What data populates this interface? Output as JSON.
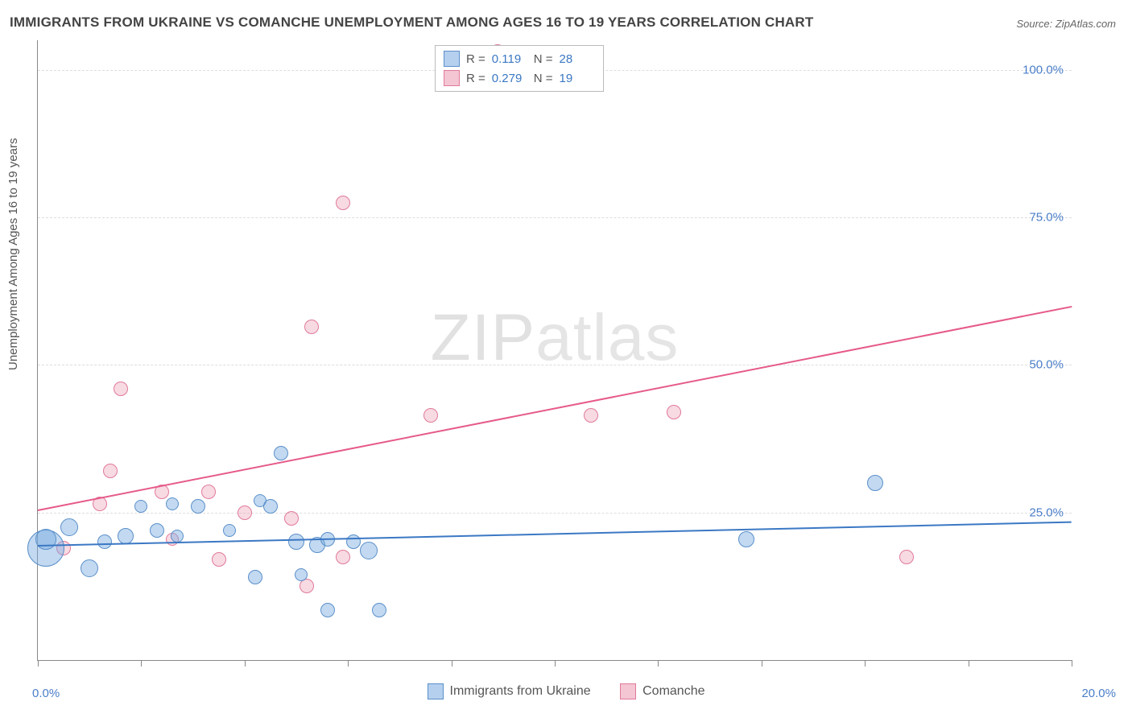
{
  "title": "IMMIGRANTS FROM UKRAINE VS COMANCHE UNEMPLOYMENT AMONG AGES 16 TO 19 YEARS CORRELATION CHART",
  "source": "Source: ZipAtlas.com",
  "ylabel": "Unemployment Among Ages 16 to 19 years",
  "watermark_bold": "ZIP",
  "watermark_thin": "atlas",
  "chart": {
    "type": "scatter",
    "x_range": [
      0.0,
      20.0
    ],
    "y_range": [
      0.0,
      105.0
    ],
    "x_min_label": "0.0%",
    "x_max_label": "20.0%",
    "y_ticks": [
      25.0,
      50.0,
      75.0,
      100.0
    ],
    "y_tick_labels": [
      "25.0%",
      "50.0%",
      "75.0%",
      "100.0%"
    ],
    "x_tick_marks": [
      0,
      2,
      4,
      6,
      8,
      10,
      12,
      14,
      16,
      18,
      20
    ],
    "grid_color": "#dddddd",
    "axis_color": "#888888",
    "background_color": "#ffffff",
    "tick_label_color": "#4a7ec9",
    "series": {
      "blue": {
        "label": "Immigrants from Ukraine",
        "fill": "rgba(120,170,225,0.45)",
        "stroke": "#5a8fc9",
        "R": "0.119",
        "N": "28",
        "trend": {
          "x1": 0.0,
          "y1": 19.5,
          "x2": 20.0,
          "y2": 23.5
        },
        "points": [
          {
            "x": 0.15,
            "y": 19.0,
            "r": 22
          },
          {
            "x": 0.15,
            "y": 20.5,
            "r": 12
          },
          {
            "x": 0.6,
            "y": 22.5,
            "r": 10
          },
          {
            "x": 1.0,
            "y": 15.5,
            "r": 10
          },
          {
            "x": 1.3,
            "y": 20.0,
            "r": 8
          },
          {
            "x": 1.7,
            "y": 21.0,
            "r": 9
          },
          {
            "x": 2.0,
            "y": 26.0,
            "r": 7
          },
          {
            "x": 2.3,
            "y": 22.0,
            "r": 8
          },
          {
            "x": 2.7,
            "y": 21.0,
            "r": 7
          },
          {
            "x": 2.6,
            "y": 26.5,
            "r": 7
          },
          {
            "x": 3.1,
            "y": 26.0,
            "r": 8
          },
          {
            "x": 3.7,
            "y": 22.0,
            "r": 7
          },
          {
            "x": 4.2,
            "y": 14.0,
            "r": 8
          },
          {
            "x": 4.3,
            "y": 27.0,
            "r": 7
          },
          {
            "x": 4.5,
            "y": 26.0,
            "r": 8
          },
          {
            "x": 4.7,
            "y": 35.0,
            "r": 8
          },
          {
            "x": 5.0,
            "y": 20.0,
            "r": 9
          },
          {
            "x": 5.1,
            "y": 14.5,
            "r": 7
          },
          {
            "x": 5.4,
            "y": 19.5,
            "r": 9
          },
          {
            "x": 5.6,
            "y": 20.5,
            "r": 8
          },
          {
            "x": 5.6,
            "y": 8.5,
            "r": 8
          },
          {
            "x": 6.1,
            "y": 20.0,
            "r": 8
          },
          {
            "x": 6.4,
            "y": 18.5,
            "r": 10
          },
          {
            "x": 6.6,
            "y": 8.5,
            "r": 8
          },
          {
            "x": 13.7,
            "y": 20.5,
            "r": 9
          },
          {
            "x": 16.2,
            "y": 30.0,
            "r": 9
          }
        ]
      },
      "pink": {
        "label": "Comanche",
        "fill": "rgba(235,150,175,0.35)",
        "stroke": "#e07a9a",
        "R": "0.279",
        "N": "19",
        "trend": {
          "x1": 0.0,
          "y1": 25.5,
          "x2": 20.0,
          "y2": 60.0
        },
        "points": [
          {
            "x": 0.5,
            "y": 19.0,
            "r": 8
          },
          {
            "x": 1.2,
            "y": 26.5,
            "r": 8
          },
          {
            "x": 1.4,
            "y": 32.0,
            "r": 8
          },
          {
            "x": 1.6,
            "y": 46.0,
            "r": 8
          },
          {
            "x": 2.4,
            "y": 28.5,
            "r": 8
          },
          {
            "x": 2.6,
            "y": 20.5,
            "r": 7
          },
          {
            "x": 3.3,
            "y": 28.5,
            "r": 8
          },
          {
            "x": 3.5,
            "y": 17.0,
            "r": 8
          },
          {
            "x": 4.0,
            "y": 25.0,
            "r": 8
          },
          {
            "x": 4.9,
            "y": 24.0,
            "r": 8
          },
          {
            "x": 5.2,
            "y": 12.5,
            "r": 8
          },
          {
            "x": 5.3,
            "y": 56.5,
            "r": 8
          },
          {
            "x": 5.9,
            "y": 77.5,
            "r": 8
          },
          {
            "x": 5.9,
            "y": 17.5,
            "r": 8
          },
          {
            "x": 7.6,
            "y": 41.5,
            "r": 8
          },
          {
            "x": 8.9,
            "y": 103.0,
            "r": 9
          },
          {
            "x": 10.7,
            "y": 41.5,
            "r": 8
          },
          {
            "x": 12.3,
            "y": 42.0,
            "r": 8
          },
          {
            "x": 16.8,
            "y": 17.5,
            "r": 8
          }
        ]
      }
    }
  },
  "legend_top": {
    "r_label": "R =",
    "n_label": "N ="
  }
}
